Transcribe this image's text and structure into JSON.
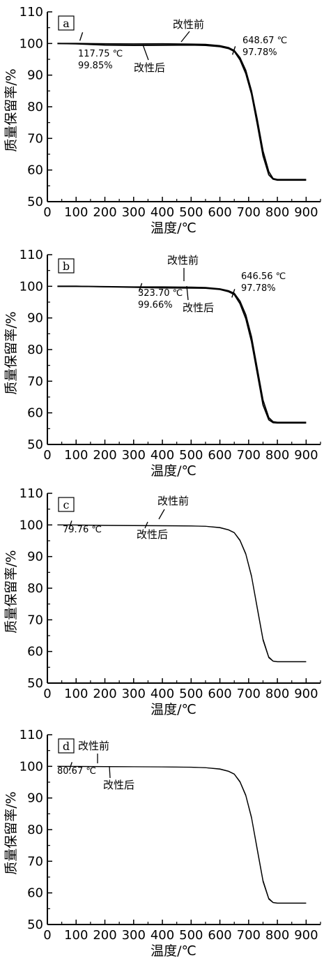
{
  "chart_data": [
    {
      "panel_label": "a",
      "type": "line",
      "xlabel": "温度/℃",
      "ylabel": "质量保留率/%",
      "xlim": [
        0,
        950
      ],
      "ylim": [
        50,
        110
      ],
      "x_ticks": [
        0,
        100,
        200,
        300,
        400,
        500,
        600,
        700,
        800,
        900
      ],
      "y_ticks": [
        50,
        60,
        70,
        80,
        90,
        100,
        110
      ],
      "grid": false,
      "series": [
        {
          "name": "改性前",
          "x": [
            35,
            100,
            200,
            300,
            400,
            500,
            550,
            600,
            630,
            650,
            670,
            690,
            710,
            730,
            750,
            770,
            785,
            800,
            850,
            900
          ],
          "y": [
            100,
            100,
            99.9,
            99.85,
            99.9,
            99.8,
            99.7,
            99.3,
            98.7,
            97.8,
            95.5,
            91.5,
            85,
            76,
            66,
            59.5,
            57.3,
            57,
            57,
            57
          ]
        },
        {
          "name": "改性后",
          "x": [
            35,
            100,
            200,
            300,
            400,
            500,
            550,
            600,
            630,
            650,
            670,
            690,
            710,
            730,
            750,
            770,
            785,
            800,
            850,
            900
          ],
          "y": [
            100,
            99.9,
            99.5,
            99.4,
            99.45,
            99.5,
            99.4,
            99,
            98.4,
            97.5,
            94.8,
            90.5,
            84,
            74.5,
            64.5,
            58.5,
            57.1,
            56.8,
            56.8,
            56.8
          ]
        }
      ],
      "annotations": [
        {
          "kind": "point",
          "x": 117.75,
          "y": 100,
          "lines": [
            "117.75 ℃",
            "99.85%"
          ]
        },
        {
          "kind": "point",
          "x": 648.67,
          "y": 97.78,
          "lines": [
            "648.67 ℃",
            "97.78%"
          ]
        },
        {
          "kind": "label",
          "text": "改性前"
        },
        {
          "kind": "label",
          "text": "改性后"
        }
      ]
    },
    {
      "panel_label": "b",
      "type": "line",
      "xlabel": "温度/℃",
      "ylabel": "质量保留率/%",
      "xlim": [
        0,
        950
      ],
      "ylim": [
        50,
        110
      ],
      "x_ticks": [
        0,
        100,
        200,
        300,
        400,
        500,
        600,
        700,
        800,
        900
      ],
      "y_ticks": [
        50,
        60,
        70,
        80,
        90,
        100,
        110
      ],
      "grid": false,
      "series": [
        {
          "name": "改性前",
          "x": [
            35,
            100,
            200,
            300,
            400,
            500,
            550,
            600,
            630,
            650,
            670,
            690,
            710,
            730,
            750,
            770,
            785,
            800,
            850,
            900
          ],
          "y": [
            100,
            100,
            99.9,
            99.8,
            99.8,
            99.7,
            99.6,
            99.2,
            98.6,
            97.8,
            95.3,
            91,
            84,
            74,
            64,
            58.5,
            57.2,
            57,
            57,
            57
          ]
        },
        {
          "name": "改性后",
          "x": [
            35,
            100,
            200,
            300,
            400,
            500,
            550,
            600,
            630,
            650,
            670,
            690,
            710,
            730,
            750,
            770,
            785,
            800,
            850,
            900
          ],
          "y": [
            100,
            100,
            99.85,
            99.7,
            99.5,
            99.45,
            99.4,
            99,
            98.3,
            97.4,
            94.5,
            89.8,
            82.5,
            72.5,
            62.5,
            57.8,
            56.9,
            56.8,
            56.8,
            56.8
          ]
        }
      ],
      "annotations": [
        {
          "kind": "point",
          "x": 323.7,
          "y": 99.66,
          "lines": [
            "323.70 ℃",
            "99.66%"
          ]
        },
        {
          "kind": "point",
          "x": 646.56,
          "y": 97.78,
          "lines": [
            "646.56 ℃",
            "97.78%"
          ]
        },
        {
          "kind": "label",
          "text": "改性前"
        },
        {
          "kind": "label",
          "text": "改性后"
        }
      ]
    },
    {
      "panel_label": "c",
      "type": "line",
      "xlabel": "温度/℃",
      "ylabel": "质量保留率/%",
      "xlim": [
        0,
        950
      ],
      "ylim": [
        50,
        110
      ],
      "x_ticks": [
        0,
        100,
        200,
        300,
        400,
        500,
        600,
        700,
        800,
        900
      ],
      "y_ticks": [
        50,
        60,
        70,
        80,
        90,
        100,
        110
      ],
      "grid": false,
      "series": [
        {
          "name": "改性前",
          "x": [
            35,
            100,
            200,
            300,
            400,
            500,
            550,
            600,
            630,
            650,
            670,
            690,
            710,
            730,
            750,
            770,
            785,
            800,
            850,
            900
          ],
          "y": [
            100,
            100,
            99.9,
            99.85,
            99.8,
            99.7,
            99.6,
            99.2,
            98.5,
            97.6,
            95.2,
            91,
            84,
            74,
            64,
            58.3,
            57,
            56.8,
            56.8,
            56.8
          ]
        },
        {
          "name": "改性后",
          "x": [
            35,
            100,
            200,
            300,
            400,
            500,
            550,
            600,
            630,
            650,
            670,
            690,
            710,
            730,
            750,
            770,
            785,
            800,
            850,
            900
          ],
          "y": [
            100,
            99.95,
            99.8,
            99.75,
            99.7,
            99.65,
            99.55,
            99.1,
            98.4,
            97.5,
            95,
            90.7,
            83.6,
            73.5,
            63.5,
            58,
            56.9,
            56.7,
            56.7,
            56.7
          ]
        }
      ],
      "annotations": [
        {
          "kind": "point",
          "x": 79.76,
          "y": 100,
          "lines": [
            "79.76 ℃"
          ]
        },
        {
          "kind": "label",
          "text": "改性前"
        },
        {
          "kind": "label",
          "text": "改性后"
        }
      ]
    },
    {
      "panel_label": "d",
      "type": "line",
      "xlabel": "温度/℃",
      "ylabel": "质量保留率/%",
      "xlim": [
        0,
        950
      ],
      "ylim": [
        50,
        110
      ],
      "x_ticks": [
        0,
        100,
        200,
        300,
        400,
        500,
        600,
        700,
        800,
        900
      ],
      "y_ticks": [
        50,
        60,
        70,
        80,
        90,
        100,
        110
      ],
      "grid": false,
      "series": [
        {
          "name": "改性前",
          "x": [
            35,
            100,
            200,
            300,
            400,
            500,
            550,
            600,
            630,
            650,
            670,
            690,
            710,
            730,
            750,
            770,
            785,
            800,
            850,
            900
          ],
          "y": [
            100,
            100,
            99.95,
            99.9,
            99.85,
            99.75,
            99.6,
            99.2,
            98.5,
            97.6,
            95.2,
            91,
            84,
            74,
            64,
            58.3,
            57,
            56.8,
            56.8,
            56.8
          ]
        },
        {
          "name": "改性后",
          "x": [
            35,
            100,
            200,
            300,
            400,
            500,
            550,
            600,
            630,
            650,
            670,
            690,
            710,
            730,
            750,
            770,
            785,
            800,
            850,
            900
          ],
          "y": [
            100,
            99.95,
            99.9,
            99.85,
            99.8,
            99.7,
            99.55,
            99.1,
            98.4,
            97.5,
            95,
            90.7,
            83.6,
            73.5,
            63.5,
            58,
            56.9,
            56.7,
            56.7,
            56.7
          ]
        }
      ],
      "annotations": [
        {
          "kind": "point",
          "x": 80.67,
          "y": 100,
          "lines": [
            "80.67 ℃"
          ]
        },
        {
          "kind": "label",
          "text": "改性前"
        },
        {
          "kind": "label",
          "text": "改性后"
        }
      ]
    }
  ]
}
